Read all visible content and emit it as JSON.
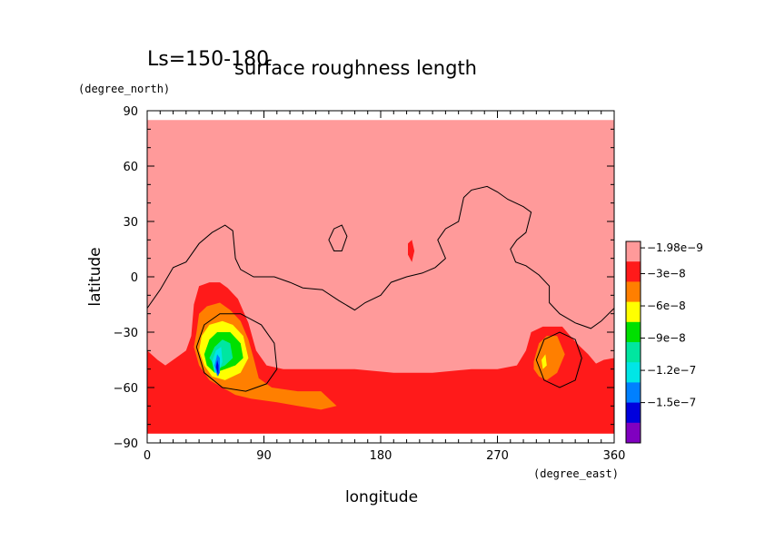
{
  "chart_data": {
    "type": "heatmap",
    "title": "surface roughness length",
    "subtitle": "Ls=150-180",
    "xlabel": "longitude",
    "ylabel": "latitude",
    "x_unit": "(degree_east)",
    "y_unit": "(degree_north)",
    "xlim": [
      0,
      360
    ],
    "ylim": [
      -90,
      90
    ],
    "x_ticks": [
      0,
      90,
      180,
      270,
      360
    ],
    "y_ticks": [
      -90,
      -60,
      -30,
      0,
      30,
      60,
      90
    ],
    "x_tick_labels": [
      "0",
      "90",
      "180",
      "270",
      "360"
    ],
    "y_tick_labels": [
      "−90",
      "−60",
      "−30",
      "0",
      "30",
      "60",
      "90"
    ],
    "grid": false,
    "legend_position": "right",
    "colorbar": {
      "levels": [
        {
          "label": "−1.98e−9",
          "color": "#ff9a9a"
        },
        {
          "label": "−3e−8",
          "color": "#ff1a1a"
        },
        {
          "label": "−6e−8",
          "color": "#ff7f00"
        },
        {
          "label": "−9e−8",
          "color": "#ffff00"
        },
        {
          "label": "−1.2e−7",
          "color": "#00e000"
        },
        {
          "label": "−1.5e−7",
          "color": "#00e6a0"
        },
        {
          "label": "",
          "color": "#00e6e6"
        },
        {
          "label": "",
          "color": "#0080ff"
        },
        {
          "label": "",
          "color": "#0000dd"
        },
        {
          "label": "",
          "color": "#8000c0"
        }
      ]
    },
    "regions": [
      {
        "name": "background",
        "level": "−1.98e−9",
        "polygon": [
          [
            0,
            85
          ],
          [
            360,
            85
          ],
          [
            360,
            -85
          ],
          [
            0,
            -85
          ]
        ]
      },
      {
        "name": "southern-band",
        "level": "−3e−8",
        "polygon": [
          [
            0,
            -40
          ],
          [
            8,
            -45
          ],
          [
            14,
            -48
          ],
          [
            22,
            -44
          ],
          [
            30,
            -40
          ],
          [
            34,
            -32
          ],
          [
            36,
            -15
          ],
          [
            40,
            -5
          ],
          [
            48,
            -3
          ],
          [
            56,
            -3
          ],
          [
            62,
            -6
          ],
          [
            70,
            -12
          ],
          [
            78,
            -25
          ],
          [
            84,
            -40
          ],
          [
            92,
            -48
          ],
          [
            105,
            -50
          ],
          [
            130,
            -50
          ],
          [
            160,
            -50
          ],
          [
            190,
            -52
          ],
          [
            220,
            -52
          ],
          [
            250,
            -50
          ],
          [
            270,
            -50
          ],
          [
            285,
            -48
          ],
          [
            292,
            -40
          ],
          [
            296,
            -30
          ],
          [
            305,
            -27
          ],
          [
            320,
            -27
          ],
          [
            326,
            -32
          ],
          [
            334,
            -38
          ],
          [
            340,
            -42
          ],
          [
            346,
            -47
          ],
          [
            352,
            -45
          ],
          [
            360,
            -44
          ],
          [
            360,
            -85
          ],
          [
            0,
            -85
          ]
        ]
      },
      {
        "name": "orange-blob-hellas",
        "level": "−3e−8",
        "polygon": [
          [
            38,
            -30
          ],
          [
            40,
            -20
          ],
          [
            46,
            -16
          ],
          [
            56,
            -14
          ],
          [
            64,
            -18
          ],
          [
            72,
            -24
          ],
          [
            78,
            -34
          ],
          [
            82,
            -44
          ],
          [
            86,
            -55
          ],
          [
            96,
            -60
          ],
          [
            116,
            -62
          ],
          [
            134,
            -62
          ],
          [
            146,
            -70
          ],
          [
            134,
            -72
          ],
          [
            116,
            -70
          ],
          [
            100,
            -68
          ],
          [
            80,
            -66
          ],
          [
            68,
            -64
          ],
          [
            58,
            -60
          ],
          [
            48,
            -56
          ],
          [
            40,
            -48
          ],
          [
            36,
            -38
          ]
        ]
      },
      {
        "name": "orange-blob-argyre",
        "level": "−3e−8",
        "polygon": [
          [
            298,
            -46
          ],
          [
            302,
            -36
          ],
          [
            308,
            -32
          ],
          [
            316,
            -32
          ],
          [
            322,
            -42
          ],
          [
            316,
            -52
          ],
          [
            308,
            -56
          ],
          [
            302,
            -54
          ],
          [
            298,
            -50
          ]
        ]
      },
      {
        "name": "yellow-blob",
        "level": "−6e−8",
        "polygon": [
          [
            40,
            -40
          ],
          [
            42,
            -32
          ],
          [
            48,
            -26
          ],
          [
            58,
            -24
          ],
          [
            66,
            -26
          ],
          [
            74,
            -32
          ],
          [
            78,
            -44
          ],
          [
            72,
            -52
          ],
          [
            60,
            -56
          ],
          [
            50,
            -54
          ],
          [
            44,
            -48
          ]
        ]
      },
      {
        "name": "green-blob",
        "level": "−9e−8",
        "polygon": [
          [
            44,
            -42
          ],
          [
            48,
            -34
          ],
          [
            54,
            -30
          ],
          [
            64,
            -30
          ],
          [
            72,
            -36
          ],
          [
            74,
            -44
          ],
          [
            68,
            -48
          ],
          [
            60,
            -50
          ],
          [
            52,
            -52
          ],
          [
            46,
            -48
          ]
        ]
      },
      {
        "name": "teal-blob",
        "level": "−1.2e−7",
        "polygon": [
          [
            48,
            -44
          ],
          [
            52,
            -38
          ],
          [
            58,
            -34
          ],
          [
            64,
            -36
          ],
          [
            66,
            -44
          ],
          [
            60,
            -48
          ],
          [
            54,
            -50
          ]
        ]
      },
      {
        "name": "cyan-blob",
        "level": "−1.2e−7",
        "polygon": [
          [
            50,
            -46
          ],
          [
            53,
            -40
          ],
          [
            57,
            -38
          ],
          [
            58,
            -46
          ],
          [
            55,
            -52
          ],
          [
            52,
            -52
          ]
        ]
      },
      {
        "name": "blue-blob",
        "level": "−1.5e−7",
        "polygon": [
          [
            52,
            -48
          ],
          [
            54,
            -42
          ],
          [
            56,
            -44
          ],
          [
            56,
            -52
          ],
          [
            54,
            -54
          ]
        ]
      },
      {
        "name": "darkblue-blob",
        "level": "−1.5e−7",
        "polygon": [
          [
            53,
            -49
          ],
          [
            54,
            -45
          ],
          [
            55,
            -48
          ],
          [
            55,
            -54
          ]
        ]
      },
      {
        "name": "small-red-spot",
        "level": "−3e−8",
        "polygon": [
          [
            201,
            18
          ],
          [
            204,
            20
          ],
          [
            206,
            14
          ],
          [
            204,
            8
          ],
          [
            201,
            12
          ]
        ]
      },
      {
        "name": "small-yellow-spot",
        "level": "−6e−8",
        "polygon": [
          [
            304,
            -45
          ],
          [
            307,
            -42
          ],
          [
            308,
            -48
          ],
          [
            305,
            -50
          ]
        ]
      }
    ],
    "contours": [
      {
        "name": "dichotomy-line",
        "points": [
          [
            0,
            -17
          ],
          [
            10,
            -7
          ],
          [
            20,
            5
          ],
          [
            30,
            8
          ],
          [
            40,
            18
          ],
          [
            50,
            24
          ],
          [
            60,
            28
          ],
          [
            66,
            25
          ],
          [
            68,
            10
          ],
          [
            72,
            4
          ],
          [
            82,
            0
          ],
          [
            98,
            0
          ],
          [
            110,
            -3
          ],
          [
            120,
            -6
          ],
          [
            135,
            -7
          ],
          [
            148,
            -13
          ],
          [
            160,
            -18
          ],
          [
            168,
            -14
          ],
          [
            180,
            -10
          ],
          [
            188,
            -3
          ],
          [
            200,
            0
          ],
          [
            212,
            2
          ],
          [
            222,
            5
          ],
          [
            230,
            10
          ],
          [
            224,
            20
          ],
          [
            230,
            26
          ],
          [
            240,
            30
          ],
          [
            244,
            43
          ],
          [
            250,
            47
          ],
          [
            262,
            49
          ],
          [
            270,
            46
          ],
          [
            278,
            42
          ],
          [
            290,
            38
          ],
          [
            296,
            35
          ],
          [
            292,
            24
          ],
          [
            285,
            20
          ],
          [
            280,
            15
          ],
          [
            284,
            8
          ],
          [
            292,
            6
          ],
          [
            302,
            1
          ],
          [
            310,
            -5
          ],
          [
            310,
            -14
          ],
          [
            318,
            -20
          ],
          [
            330,
            -25
          ],
          [
            342,
            -28
          ],
          [
            350,
            -24
          ],
          [
            360,
            -17
          ]
        ]
      },
      {
        "name": "hellas-rim",
        "closed": true,
        "points": [
          [
            38,
            -38
          ],
          [
            44,
            -26
          ],
          [
            56,
            -20
          ],
          [
            72,
            -20
          ],
          [
            88,
            -26
          ],
          [
            98,
            -36
          ],
          [
            100,
            -50
          ],
          [
            92,
            -58
          ],
          [
            76,
            -62
          ],
          [
            58,
            -60
          ],
          [
            44,
            -52
          ]
        ]
      },
      {
        "name": "argyre-rim",
        "closed": true,
        "points": [
          [
            300,
            -45
          ],
          [
            306,
            -34
          ],
          [
            318,
            -30
          ],
          [
            330,
            -34
          ],
          [
            335,
            -44
          ],
          [
            330,
            -56
          ],
          [
            318,
            -60
          ],
          [
            306,
            -56
          ]
        ]
      },
      {
        "name": "small-ring",
        "closed": true,
        "points": [
          [
            140,
            20
          ],
          [
            144,
            26
          ],
          [
            150,
            28
          ],
          [
            154,
            22
          ],
          [
            150,
            14
          ],
          [
            144,
            14
          ]
        ]
      }
    ]
  }
}
